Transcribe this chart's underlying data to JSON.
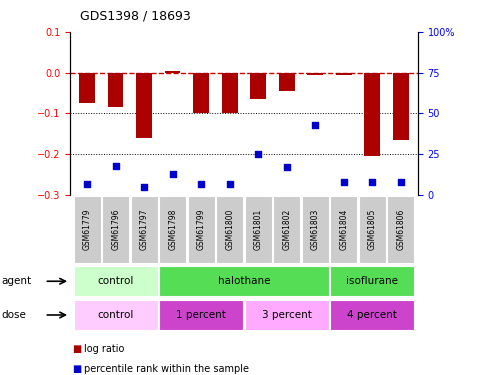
{
  "title": "GDS1398 / 18693",
  "samples": [
    "GSM61779",
    "GSM61796",
    "GSM61797",
    "GSM61798",
    "GSM61799",
    "GSM61800",
    "GSM61801",
    "GSM61802",
    "GSM61803",
    "GSM61804",
    "GSM61805",
    "GSM61806"
  ],
  "log_ratio": [
    -0.075,
    -0.085,
    -0.16,
    0.005,
    -0.1,
    -0.1,
    -0.065,
    -0.045,
    -0.005,
    -0.005,
    -0.205,
    -0.165
  ],
  "percentile_rank": [
    7,
    18,
    5,
    13,
    7,
    7,
    25,
    17,
    43,
    8,
    8,
    8
  ],
  "ylim_left": [
    -0.3,
    0.1
  ],
  "ylim_right": [
    0,
    100
  ],
  "yticks_left": [
    -0.3,
    -0.2,
    -0.1,
    0.0,
    0.1
  ],
  "yticks_right": [
    0,
    25,
    50,
    75,
    100
  ],
  "bar_color": "#aa0000",
  "dot_color": "#0000cc",
  "hline_color": "#cc0000",
  "dotline_color": "black",
  "sample_bg": "#cccccc",
  "agent_control_color": "#ccffcc",
  "agent_halothane_color": "#55dd55",
  "agent_isoflurane_color": "#55dd55",
  "dose_control_color": "#ffccff",
  "dose_1pct_color": "#cc44cc",
  "dose_3pct_color": "#ffaaff",
  "dose_4pct_color": "#cc44cc",
  "agent_groups": [
    {
      "label": "control",
      "start": 0,
      "end": 3,
      "color": "#ccffcc"
    },
    {
      "label": "halothane",
      "start": 3,
      "end": 9,
      "color": "#55dd55"
    },
    {
      "label": "isoflurane",
      "start": 9,
      "end": 12,
      "color": "#55dd55"
    }
  ],
  "dose_groups": [
    {
      "label": "control",
      "start": 0,
      "end": 3,
      "color": "#ffccff"
    },
    {
      "label": "1 percent",
      "start": 3,
      "end": 6,
      "color": "#cc44cc"
    },
    {
      "label": "3 percent",
      "start": 6,
      "end": 9,
      "color": "#ffaaff"
    },
    {
      "label": "4 percent",
      "start": 9,
      "end": 12,
      "color": "#cc44cc"
    }
  ]
}
